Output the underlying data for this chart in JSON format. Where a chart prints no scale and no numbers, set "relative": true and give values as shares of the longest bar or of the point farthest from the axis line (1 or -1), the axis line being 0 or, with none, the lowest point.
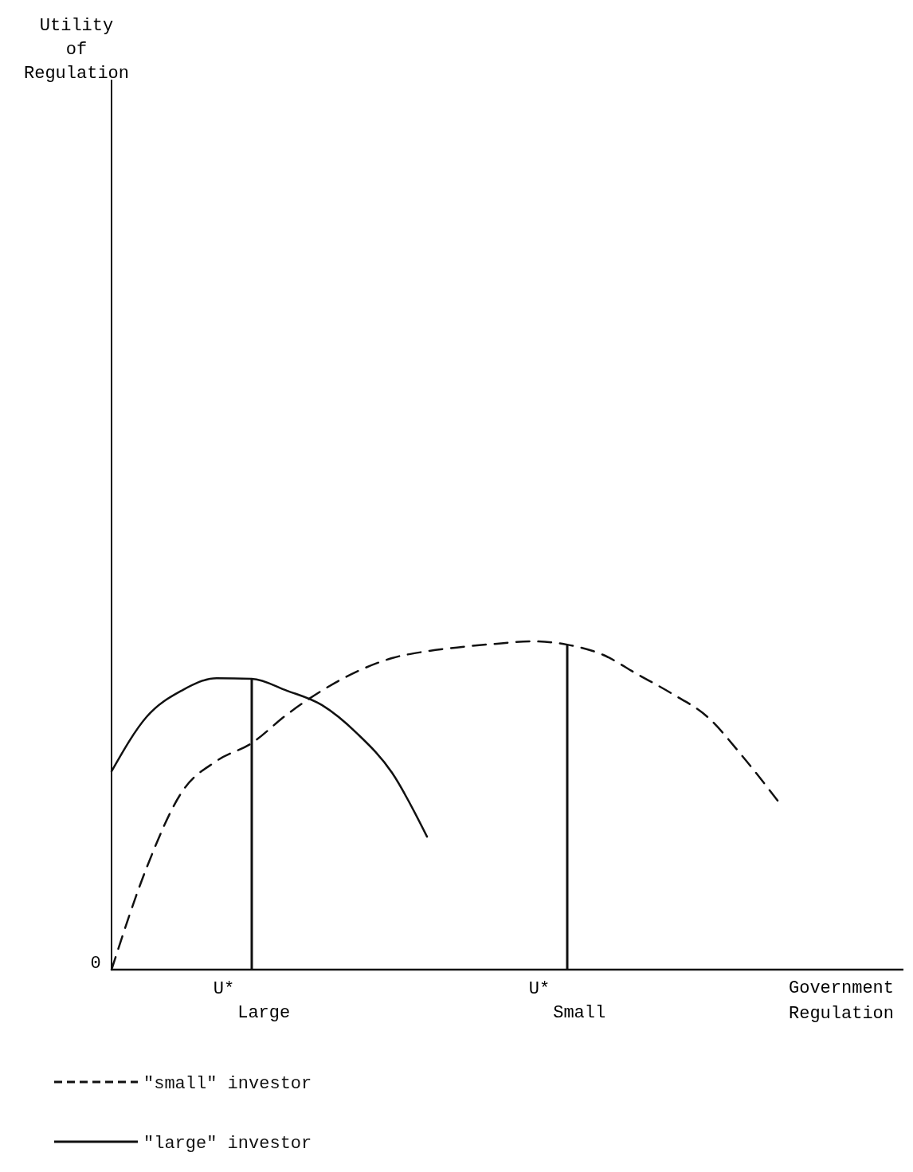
{
  "chart_data": {
    "type": "line",
    "relative": true,
    "xlabel": "Government Regulation",
    "annotations": [
      "0",
      "Utility of Regulation"
    ],
    "categories": [
      null,
      null,
      null,
      null,
      "U*$_{Large}$",
      null,
      null,
      null,
      null,
      null,
      null,
      null,
      null,
      "U*$_{Small}$",
      null,
      null,
      null,
      null,
      null,
      null,
      null,
      null,
      null
    ],
    "series": [
      {
        "name": "\"small\" investor",
        "color": "#111111",
        "line_style": "dashed",
        "values": [
          0,
          0.31,
          0.54,
          0.636,
          0.69,
          0.777,
          0.85,
          0.908,
          0.949,
          0.97,
          0.983,
          0.993,
          1.0,
          0.99,
          0.96,
          0.9,
          0.84,
          0.77,
          0.65,
          0.515,
          null,
          null,
          null
        ]
      },
      {
        "name": "\"large\" investor",
        "color": "#111111",
        "line_style": "solid",
        "values": [
          0.604,
          0.77,
          0.85,
          0.888,
          0.886,
          0.85,
          0.806,
          0.72,
          0.6,
          0.405,
          null,
          null,
          null,
          null,
          null,
          null,
          null,
          null,
          null,
          null,
          null,
          null,
          null
        ]
      }
    ],
    "ref_lines": [
      {
        "axis": "x",
        "value": "U*$_{Large}$"
      },
      {
        "axis": "x",
        "value": "U*$_{Small}$"
      }
    ],
    "legend": "bottom left"
  }
}
